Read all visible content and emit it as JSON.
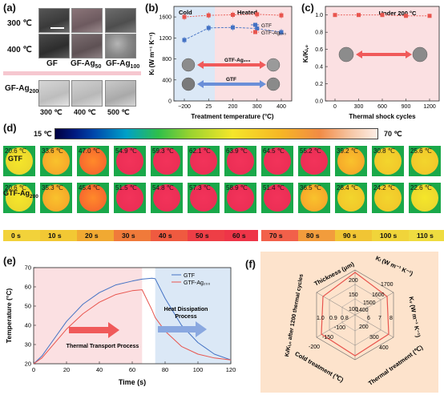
{
  "panel_a": {
    "label": "(a)",
    "row_labels": [
      "300 ℃",
      "400 ℃"
    ],
    "col_labels": [
      "GF",
      "GF-Ag",
      "GF-Ag"
    ],
    "col_subs": [
      "",
      "50",
      "100"
    ],
    "bottom_label_main": "GF-Ag",
    "bottom_label_sub": "200",
    "bottom_temps": [
      "300 ℃",
      "400 ℃",
      "500 ℃"
    ]
  },
  "panel_b": {
    "label": "(b)",
    "region_left": "Cold",
    "region_right": "Heated",
    "ylabel": "Kₗ (W m⁻¹ K⁻¹)",
    "xlabel": "Treatment temperature (°C)",
    "legend": [
      "GTF",
      "GTF-Ag₂₀₀"
    ],
    "arrow_red_label": "GTF-Ag₂₀₀",
    "arrow_blue_label": "GTF"
  },
  "panel_c": {
    "label": "(c)",
    "note": "Under 200 °C",
    "ylabel": "Kₗ/Kₗ,₀",
    "xlabel": "Thermal shock cycles"
  },
  "panel_d": {
    "label": "(d)",
    "scale_min": "15 ℃",
    "scale_max": "70 ℃",
    "row1_label": "GTF",
    "row2_label": "GTF-Ag",
    "row2_sub": "200",
    "row1_temps": [
      "20.6 ℃",
      "33.6 ℃",
      "47.0 ℃",
      "54.9 ℃",
      "59.3 ℃",
      "62.1 ℃",
      "63.9 ℃",
      "64.5 ℃",
      "55.2 ℃",
      "39.2 ℃",
      "30.8 ℃",
      "25.6 ℃"
    ],
    "row2_temps": [
      "20.6 ℃",
      "35.3 ℃",
      "45.4 ℃",
      "51.5 ℃",
      "54.8 ℃",
      "57.3 ℃",
      "58.9 ℃",
      "51.4 ℃",
      "36.5 ℃",
      "28.4 ℃",
      "24.2 ℃",
      "22.6 ℃"
    ],
    "times": [
      "0 s",
      "10 s",
      "20 s",
      "30 s",
      "40 s",
      "50 s",
      "60 s",
      "70 s",
      "80 s",
      "90 s",
      "100 s",
      "110 s"
    ]
  },
  "panel_e": {
    "label": "(e)",
    "ylabel": "Temperature (°C)",
    "xlabel": "Time (s)",
    "legend": [
      "GTF",
      "GTF-Ag₂₀₀"
    ],
    "arrow_left": "Thermal Transport Process",
    "arrow_right_1": "Heat Dissipation",
    "arrow_right_2": "Process"
  },
  "panel_f": {
    "label": "(f)",
    "axes": [
      "Thickness (μm)",
      "Kₗ (W m⁻¹ K⁻¹)",
      "Kᵥ (W m⁻¹ K⁻¹)",
      "Thermal treatment (℃)",
      "Cold treatment (℃)",
      "Kₗ/Kₗ,₀ after 1200 thermal cycles"
    ],
    "thickness_ticks": [
      "200",
      "150",
      "100"
    ],
    "kl_ticks": [
      "1700",
      "1600",
      "1500",
      "1400"
    ],
    "kv_ticks": [
      "8",
      "7",
      "6"
    ],
    "thermal_ticks": [
      "400",
      "300",
      "200"
    ],
    "cold_ticks": [
      "-200",
      "-150",
      "-100"
    ],
    "ratio_ticks": [
      "1.0",
      "0.9",
      "0.8"
    ]
  },
  "chart_data": [
    {
      "type": "line",
      "title": "",
      "xlabel": "Treatment temperature (°C)",
      "ylabel": "Kₗ (W m⁻¹ K⁻¹)",
      "categories": [
        "−200",
        "25",
        "200",
        "300",
        "400"
      ],
      "series": [
        {
          "name": "GTF",
          "color": "#4472c4",
          "values": [
            1160,
            1390,
            1400,
            1380,
            1310
          ]
        },
        {
          "name": "GTF-Ag₂₀₀",
          "color": "#e8554e",
          "values": [
            1600,
            1630,
            1640,
            1650,
            1630
          ]
        }
      ],
      "ylim": [
        0,
        1800
      ],
      "yticks": [
        0,
        400,
        800,
        1200,
        1600
      ]
    },
    {
      "type": "line",
      "title": "",
      "xlabel": "Thermal shock cycles",
      "ylabel": "Kₗ/Kₗ,₀",
      "categories": [
        "0",
        "300",
        "600",
        "900",
        "1200"
      ],
      "series": [
        {
          "name": "",
          "color": "#e8554e",
          "values": [
            1.0,
            1.0,
            1.0,
            0.99,
            0.99
          ]
        }
      ],
      "ylim": [
        0.0,
        1.1
      ],
      "yticks": [
        0.0,
        0.2,
        0.4,
        0.6,
        0.8,
        1.0
      ]
    },
    {
      "type": "line",
      "title": "",
      "xlabel": "Time (s)",
      "ylabel": "Temperature (°C)",
      "x": [
        0,
        5,
        10,
        20,
        30,
        40,
        50,
        60,
        66,
        72,
        74,
        80,
        90,
        100,
        110,
        120
      ],
      "series": [
        {
          "name": "GTF",
          "color": "#4472c4",
          "values": [
            20,
            24,
            30,
            42,
            51,
            57,
            61,
            63,
            64,
            64.5,
            64.2,
            54,
            40,
            31,
            25,
            22
          ]
        },
        {
          "name": "GTF-Ag₂₀₀",
          "color": "#e8554e",
          "values": [
            20,
            23,
            28,
            38,
            46,
            52,
            56,
            58,
            58.5,
            48,
            44,
            37,
            29,
            25,
            23,
            22
          ]
        }
      ],
      "xlim": [
        0,
        120
      ],
      "ylim": [
        20,
        70
      ],
      "xticks": [
        0,
        20,
        40,
        60,
        80,
        100,
        120
      ],
      "yticks": [
        20,
        30,
        40,
        50,
        60,
        70
      ]
    }
  ]
}
